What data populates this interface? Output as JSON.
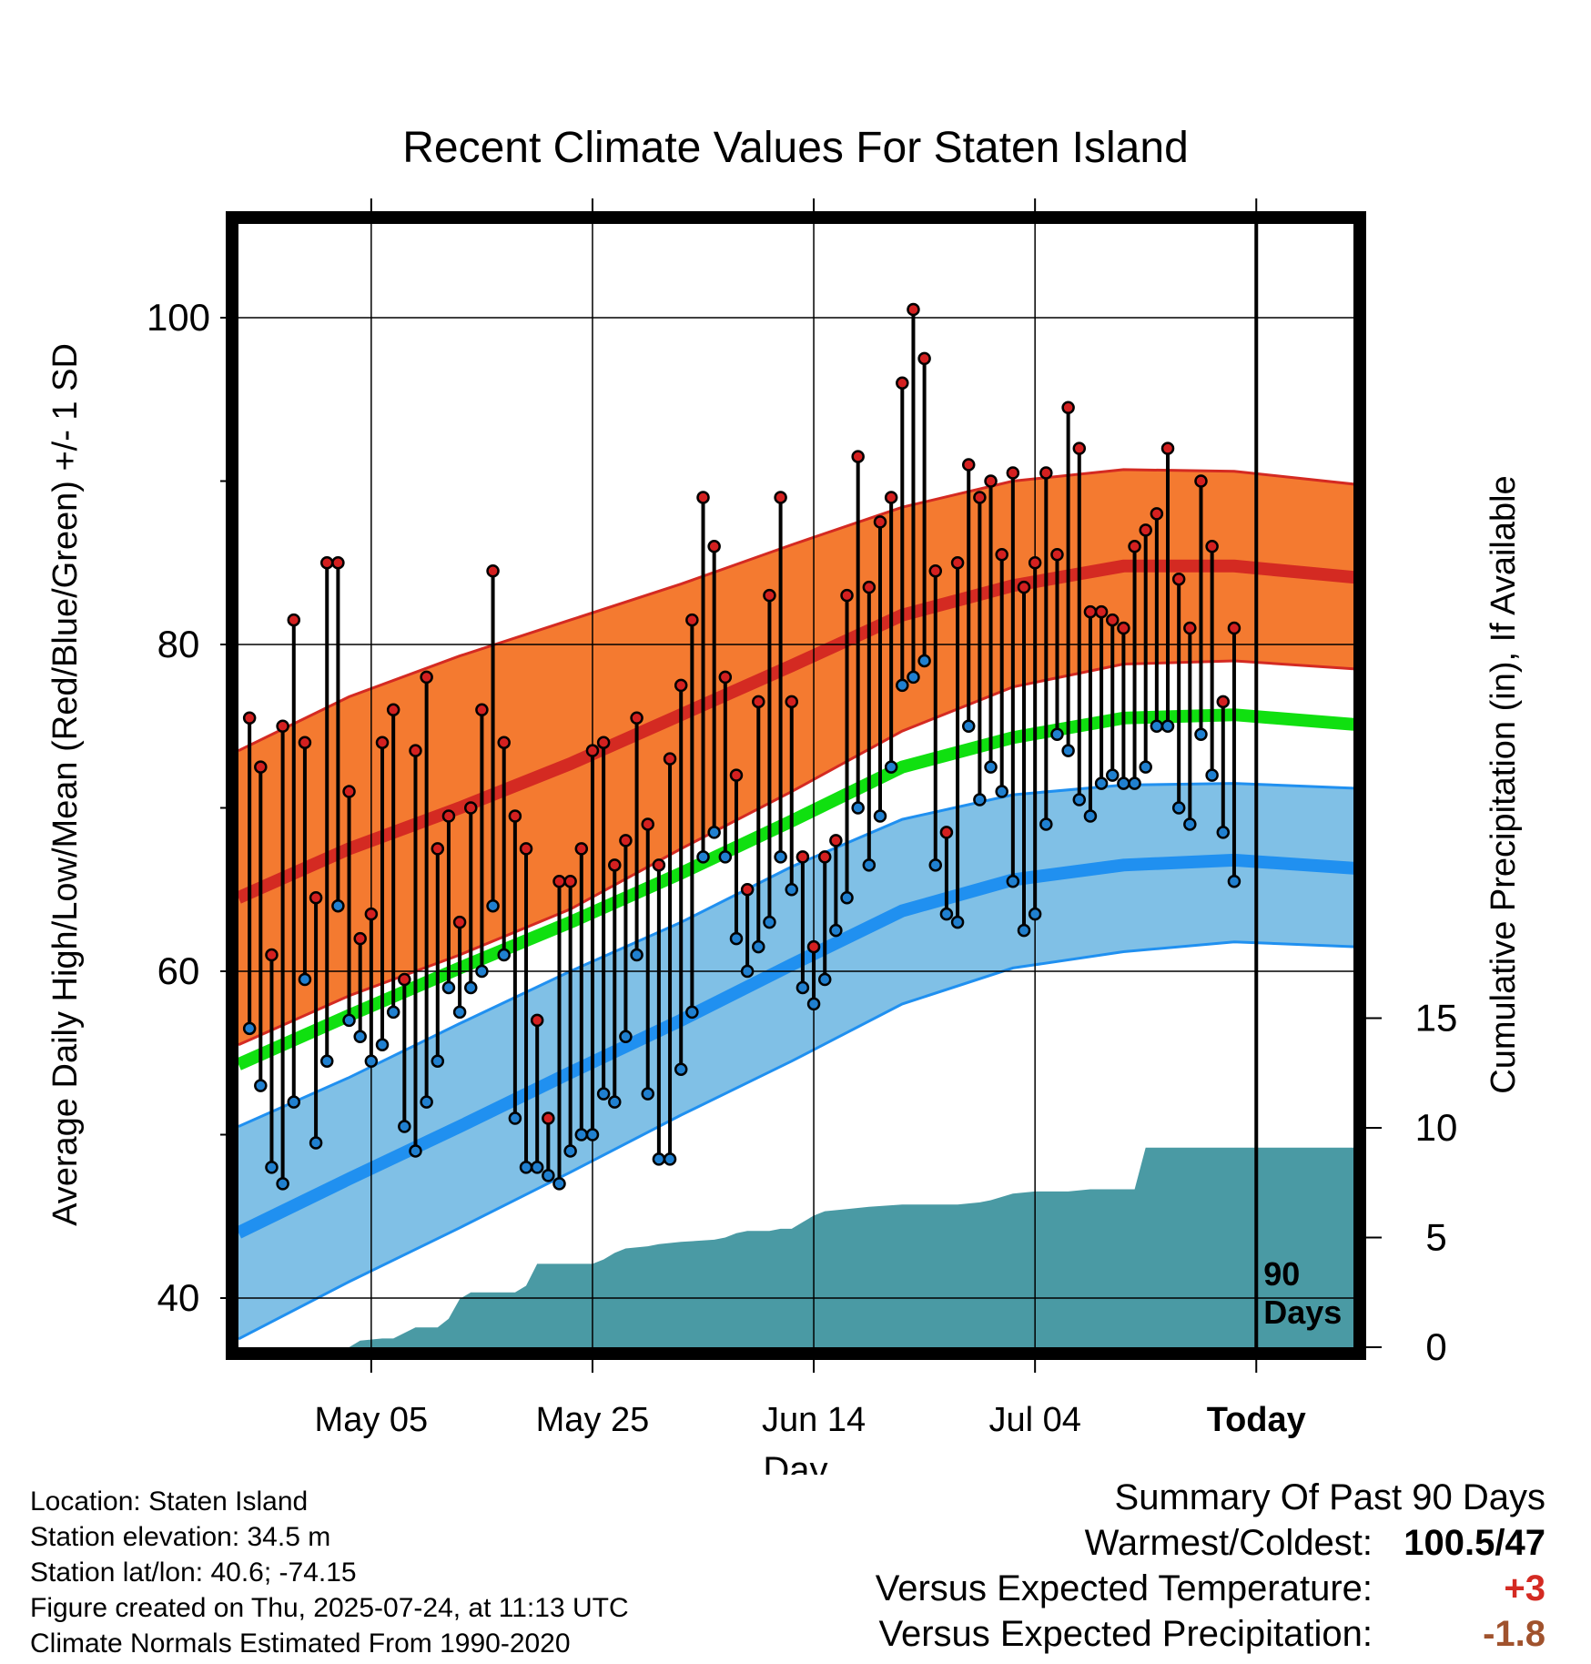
{
  "chart_data": {
    "type": "line",
    "title": "Recent Climate Values For Staten Island",
    "xlabel": "Day",
    "ylabel": "Average Daily High/Low/Mean (Red/Blue/Green) +/- 1 SD",
    "y2label": "Cumulative Precipitation (in), If Available",
    "ylim": [
      37,
      106
    ],
    "y2lim": [
      0,
      20
    ],
    "y_ticks": [
      40,
      60,
      80,
      100
    ],
    "y2_ticks": [
      0,
      5,
      10,
      15
    ],
    "x_ticks": [
      {
        "day": 12,
        "label": "May 05"
      },
      {
        "day": 32,
        "label": "May 25"
      },
      {
        "day": 52,
        "label": "Jun 14"
      },
      {
        "day": 72,
        "label": "Jul 04"
      },
      {
        "day": 92,
        "label": "Today"
      }
    ],
    "x_range": [
      0,
      101
    ],
    "window_label": "90 Days",
    "colors": {
      "high_band": "#f47a30",
      "high_mean": "#d42a22",
      "low_band": "#80c0e6",
      "low_mean": "#2090f0",
      "mean_line": "#10e010",
      "precip": "#4a9aa4",
      "high_dot": "#d42020",
      "low_dot": "#2080d0",
      "warm_text": "#d42a22",
      "dry_text": "#a0522d"
    },
    "normals": {
      "day": [
        0,
        10,
        20,
        30,
        40,
        50,
        60,
        70,
        80,
        90,
        101
      ],
      "high_upper": [
        73.5,
        76.8,
        79.3,
        81.5,
        83.7,
        86.1,
        88.4,
        90.0,
        90.7,
        90.6,
        89.8
      ],
      "high_mean": [
        64.5,
        67.5,
        70.0,
        72.7,
        75.7,
        78.7,
        81.8,
        83.6,
        84.8,
        84.8,
        84.1
      ],
      "high_lower": [
        55.5,
        58.5,
        61.0,
        63.8,
        67.5,
        71.0,
        74.7,
        77.4,
        78.8,
        79.0,
        78.5
      ],
      "mean_line": [
        54.3,
        57.3,
        60.2,
        63.0,
        66.0,
        69.2,
        72.5,
        74.3,
        75.5,
        75.7,
        75.1
      ],
      "low_upper": [
        50.5,
        53.5,
        56.8,
        60.0,
        63.0,
        66.4,
        69.3,
        70.8,
        71.4,
        71.5,
        71.2
      ],
      "low_mean": [
        44.0,
        47.3,
        50.5,
        53.8,
        57.0,
        60.4,
        63.7,
        65.6,
        66.5,
        66.8,
        66.3
      ],
      "low_lower": [
        37.5,
        41.0,
        44.3,
        47.7,
        51.2,
        54.5,
        58.0,
        60.2,
        61.2,
        61.8,
        61.5
      ]
    },
    "series": [
      {
        "name": "High",
        "values": [
          75.5,
          72.5,
          61,
          75,
          81.5,
          74,
          64.5,
          85,
          85,
          71,
          62,
          63.5,
          74,
          76,
          59.5,
          73.5,
          78,
          67.5,
          69.5,
          63,
          70,
          76,
          84.5,
          74,
          69.5,
          67.5,
          57,
          51,
          65.5,
          65.5,
          67.5,
          73.5,
          74,
          66.5,
          68,
          75.5,
          69,
          66.5,
          73,
          77.5,
          81.5,
          89,
          86,
          78,
          72,
          65,
          76.5,
          83,
          89,
          76.5,
          67,
          61.5,
          67,
          68,
          83,
          91.5,
          83.5,
          87.5,
          89,
          96,
          100.5,
          97.5,
          84.5,
          68.5,
          85,
          91,
          89,
          90,
          85.5,
          90.5,
          83.5,
          85,
          90.5,
          85.5,
          94.5,
          92,
          82,
          82,
          81.5,
          81,
          86,
          87,
          88,
          92,
          84,
          81,
          90,
          86,
          76.5,
          81
        ]
      },
      {
        "name": "Low",
        "values": [
          56.5,
          53,
          48,
          47,
          52,
          59.5,
          49.5,
          54.5,
          64,
          57,
          56,
          54.5,
          55.5,
          57.5,
          50.5,
          49,
          52,
          54.5,
          59,
          57.5,
          59,
          60,
          64,
          61,
          51,
          48,
          48,
          47.5,
          47,
          49,
          50,
          50,
          52.5,
          52,
          56,
          61,
          52.5,
          48.5,
          48.5,
          54,
          57.5,
          67,
          68.5,
          67,
          62,
          60,
          61.5,
          63,
          67,
          65,
          59,
          58,
          59.5,
          62.5,
          64.5,
          70,
          66.5,
          69.5,
          72.5,
          77.5,
          78,
          79,
          66.5,
          63.5,
          63,
          75,
          70.5,
          72.5,
          71,
          65.5,
          62.5,
          63.5,
          69,
          74.5,
          73.5,
          70.5,
          69.5,
          71.5,
          72,
          71.5,
          71.5,
          72.5,
          75,
          75,
          70,
          69,
          74.5,
          72,
          68.5,
          65.5
        ]
      },
      {
        "name": "Cumulative Precipitation",
        "x": [
          0,
          10,
          11,
          13,
          14,
          16,
          18,
          19,
          20,
          21,
          23,
          25,
          26,
          27,
          28,
          31,
          32,
          33,
          34,
          35,
          37,
          38,
          40,
          43,
          44,
          45,
          46,
          48,
          49,
          50,
          51,
          52,
          53,
          55,
          57,
          60,
          65,
          67,
          68,
          70,
          72,
          73,
          75,
          77,
          78,
          80,
          81,
          82,
          92,
          101
        ],
        "values": [
          0,
          0,
          0.3,
          0.4,
          0.4,
          0.9,
          0.9,
          1.3,
          2.2,
          2.5,
          2.5,
          2.5,
          2.8,
          3.8,
          3.8,
          3.8,
          3.8,
          4.0,
          4.3,
          4.5,
          4.6,
          4.7,
          4.8,
          4.9,
          5.0,
          5.2,
          5.3,
          5.3,
          5.4,
          5.4,
          5.7,
          6.0,
          6.2,
          6.3,
          6.4,
          6.5,
          6.5,
          6.6,
          6.7,
          7.0,
          7.1,
          7.1,
          7.1,
          7.2,
          7.2,
          7.2,
          7.2,
          9.1,
          9.1,
          9.1
        ]
      }
    ]
  },
  "location_info": {
    "location": "Location: Staten Island",
    "elevation": "Station elevation: 34.5 m",
    "latlon": "Station lat/lon: 40.6; -74.15",
    "created": "Figure created on Thu, 2025-07-24, at 11:13 UTC",
    "normals": "Climate Normals Estimated From 1990-2020"
  },
  "summary": {
    "title": "Summary Of Past 90 Days",
    "warmest_label": "Warmest/Coldest:",
    "warmest_value": "100.5/47",
    "temp_label": "Versus Expected Temperature:",
    "temp_value": "+3",
    "precip_label": "Versus Expected Precipitation:",
    "precip_value": "-1.8"
  }
}
